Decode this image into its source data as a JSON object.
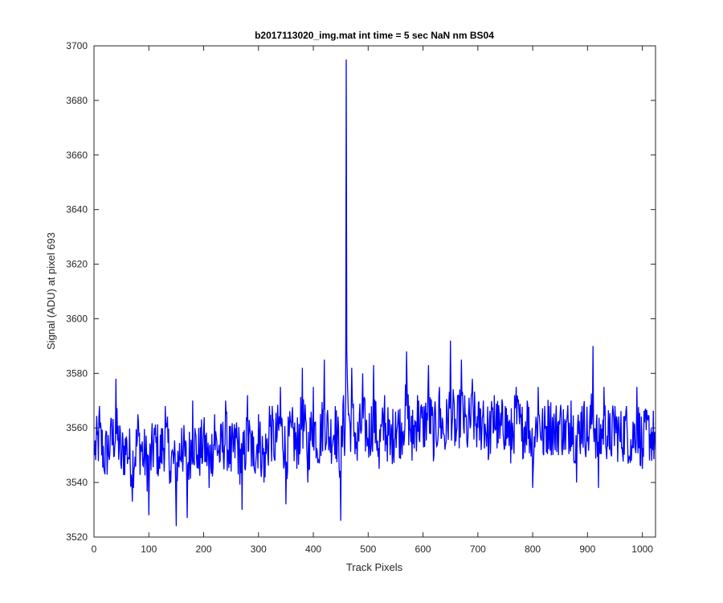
{
  "chart_data": {
    "type": "line",
    "title": "b2017113020_img.mat int time = 5 sec  NaN nm BS04",
    "xlabel": "Track Pixels",
    "ylabel": "Signal (ADU) at pixel 693",
    "xlim": [
      0,
      1024
    ],
    "ylim": [
      3520,
      3700
    ],
    "xticks": [
      0,
      100,
      200,
      300,
      400,
      500,
      600,
      700,
      800,
      900,
      1000
    ],
    "yticks": [
      3520,
      3540,
      3560,
      3580,
      3600,
      3620,
      3640,
      3660,
      3680,
      3700
    ],
    "xtick_labels": [
      "0",
      "100",
      "200",
      "300",
      "400",
      "500",
      "600",
      "700",
      "800",
      "900",
      "1000"
    ],
    "ytick_labels": [
      "3520",
      "3540",
      "3560",
      "3580",
      "3600",
      "3620",
      "3640",
      "3660",
      "3680",
      "3700"
    ],
    "grid": false,
    "series": [
      {
        "color": "#0000ff",
        "x": [
          1,
          10,
          20,
          30,
          40,
          50,
          60,
          70,
          80,
          90,
          100,
          110,
          120,
          130,
          140,
          150,
          160,
          170,
          180,
          190,
          200,
          210,
          220,
          230,
          240,
          250,
          260,
          270,
          280,
          290,
          300,
          310,
          320,
          330,
          340,
          350,
          360,
          370,
          380,
          390,
          400,
          410,
          420,
          430,
          440,
          450,
          455,
          458,
          460,
          465,
          470,
          480,
          490,
          500,
          510,
          520,
          530,
          540,
          550,
          560,
          570,
          580,
          590,
          600,
          610,
          620,
          630,
          640,
          650,
          660,
          670,
          680,
          690,
          700,
          710,
          720,
          730,
          740,
          750,
          760,
          770,
          780,
          790,
          800,
          810,
          820,
          830,
          840,
          850,
          860,
          870,
          880,
          890,
          900,
          910,
          920,
          930,
          940,
          950,
          960,
          970,
          980,
          990,
          1000,
          1010,
          1024
        ],
        "y": [
          3550,
          3568,
          3543,
          3560,
          3578,
          3545,
          3555,
          3533,
          3565,
          3546,
          3528,
          3560,
          3545,
          3568,
          3540,
          3524,
          3560,
          3527,
          3570,
          3545,
          3560,
          3538,
          3565,
          3548,
          3570,
          3544,
          3562,
          3530,
          3572,
          3546,
          3565,
          3540,
          3568,
          3548,
          3575,
          3532,
          3560,
          3545,
          3582,
          3540,
          3575,
          3548,
          3585,
          3555,
          3568,
          3526,
          3572,
          3560,
          3695,
          3565,
          3582,
          3548,
          3580,
          3555,
          3583,
          3545,
          3572,
          3550,
          3566,
          3556,
          3588,
          3548,
          3572,
          3560,
          3583,
          3550,
          3575,
          3552,
          3592,
          3555,
          3585,
          3555,
          3578,
          3560,
          3570,
          3550,
          3572,
          3556,
          3568,
          3547,
          3575,
          3555,
          3570,
          3538,
          3575,
          3550,
          3568,
          3555,
          3565,
          3552,
          3570,
          3540,
          3568,
          3555,
          3590,
          3538,
          3575,
          3552,
          3568,
          3555,
          3566,
          3548,
          3575,
          3545,
          3563,
          3552
        ]
      }
    ]
  }
}
